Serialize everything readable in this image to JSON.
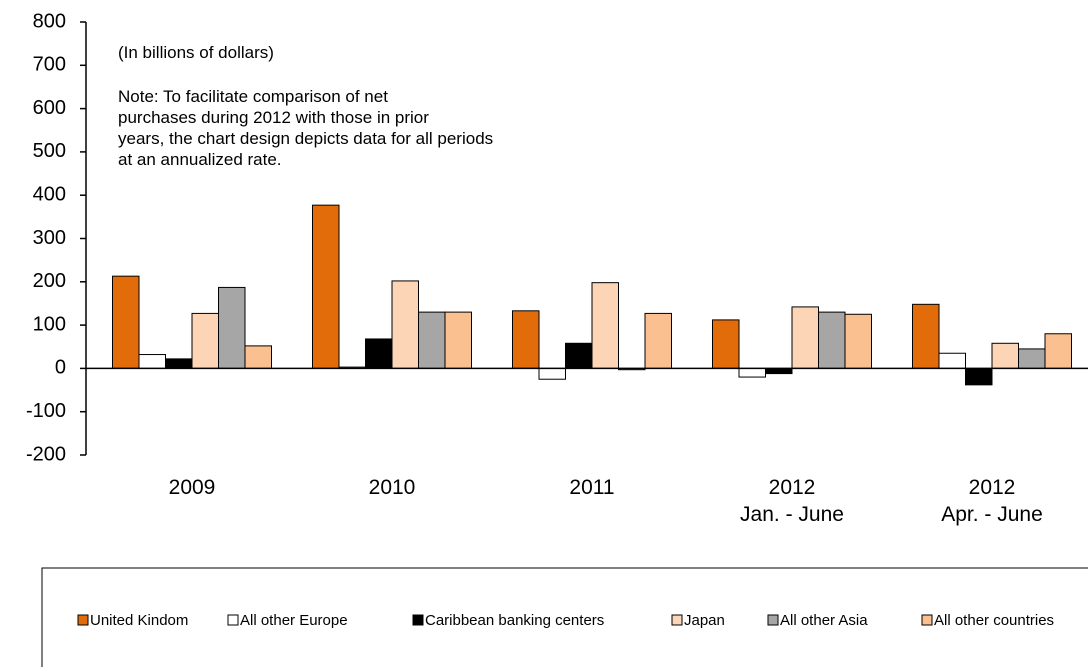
{
  "chart_data": {
    "type": "bar",
    "annotations": [
      "(In billions of dollars)",
      "Note: To facilitate comparison of net\npurchases during 2012 with those in prior\nyears, the chart design depicts data for all periods\nat an annualized rate."
    ],
    "categories": [
      "2009",
      "2010",
      "2011",
      "2012\nJan. - June",
      "2012\nApr. - June"
    ],
    "series": [
      {
        "name": "United Kindom",
        "color": "#e36c0a",
        "values": [
          213,
          377,
          133,
          112,
          148
        ]
      },
      {
        "name": "All other Europe",
        "color": "#ffffff",
        "values": [
          32,
          3,
          -25,
          -20,
          35
        ]
      },
      {
        "name": "Caribbean banking centers",
        "color": "#000000",
        "values": [
          22,
          68,
          58,
          -12,
          -38
        ]
      },
      {
        "name": "Japan",
        "color": "#fbd5b5",
        "values": [
          127,
          202,
          198,
          142,
          58
        ]
      },
      {
        "name": "All other Asia",
        "color": "#a6a6a6",
        "values": [
          187,
          130,
          -3,
          130,
          45
        ]
      },
      {
        "name": "All other countries",
        "color": "#fac090",
        "values": [
          52,
          130,
          127,
          125,
          80
        ]
      }
    ],
    "ylim": [
      -200,
      800
    ],
    "yticks": [
      -200,
      -100,
      0,
      100,
      200,
      300,
      400,
      500,
      600,
      700,
      800
    ],
    "legend": "bottom"
  }
}
